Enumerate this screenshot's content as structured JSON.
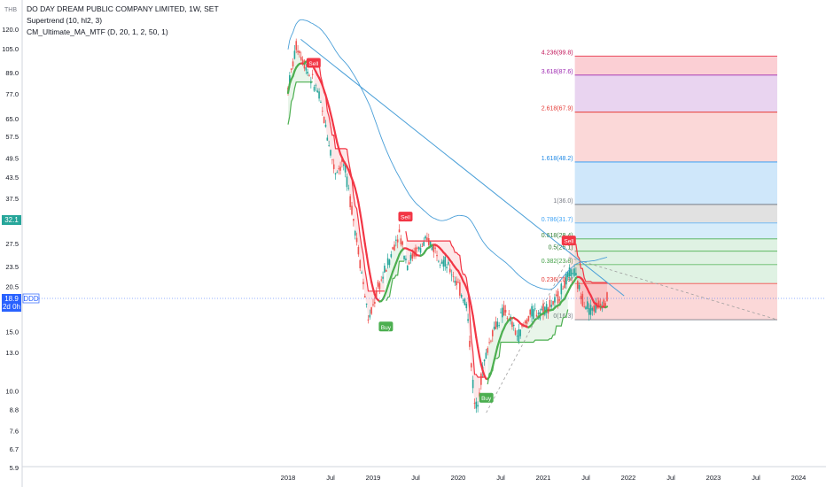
{
  "legend": {
    "title": "DO DAY DREAM PUBLIC COMPANY LIMITED, 1W, SET",
    "indicator1": "Supertrend (10, hl2, 3)",
    "indicator2": "CM_Ultimate_MA_MTF (D, 20, 1, 2, 50, 1)"
  },
  "currency": "THB",
  "current_price": {
    "value": "18.9",
    "timer": "2d 0h",
    "symbol": "DDD"
  },
  "level_marker": {
    "value": "32.1"
  },
  "colors": {
    "up": "#26a69a",
    "down": "#ef5350",
    "trend_line": "#4a9fd8",
    "supertrend_up": "#4caf50",
    "supertrend_down": "#f23645",
    "ma_line": "#4a9fd8"
  },
  "chart_data": {
    "type": "candlestick",
    "title": "DO DAY DREAM PUBLIC COMPANY LIMITED, 1W, SET",
    "y_scale": "log",
    "ylim": [
      5.9,
      120.0
    ],
    "y_ticks": [
      "120.0",
      "105.0",
      "89.0",
      "77.0",
      "65.0",
      "57.5",
      "49.5",
      "43.5",
      "37.5",
      "32.1",
      "27.5",
      "23.5",
      "20.5",
      "18.9",
      "15.0",
      "13.0",
      "10.0",
      "8.8",
      "7.6",
      "6.7",
      "5.9"
    ],
    "x_ticks": [
      "2018",
      "Jul",
      "2019",
      "Jul",
      "2020",
      "Jul",
      "2021",
      "Jul",
      "2022",
      "Jul",
      "2023",
      "Jul",
      "2024"
    ],
    "price_path": [
      {
        "t": 2018.0,
        "v": 80
      },
      {
        "t": 2018.1,
        "v": 108
      },
      {
        "t": 2018.25,
        "v": 88
      },
      {
        "t": 2018.35,
        "v": 78
      },
      {
        "t": 2018.45,
        "v": 60
      },
      {
        "t": 2018.55,
        "v": 45
      },
      {
        "t": 2018.65,
        "v": 48
      },
      {
        "t": 2018.75,
        "v": 35
      },
      {
        "t": 2018.85,
        "v": 24
      },
      {
        "t": 2018.95,
        "v": 16
      },
      {
        "t": 2019.05,
        "v": 20
      },
      {
        "t": 2019.2,
        "v": 25
      },
      {
        "t": 2019.3,
        "v": 30
      },
      {
        "t": 2019.4,
        "v": 24
      },
      {
        "t": 2019.5,
        "v": 26
      },
      {
        "t": 2019.65,
        "v": 28
      },
      {
        "t": 2019.8,
        "v": 25
      },
      {
        "t": 2019.95,
        "v": 22
      },
      {
        "t": 2020.1,
        "v": 18
      },
      {
        "t": 2020.2,
        "v": 8.6
      },
      {
        "t": 2020.3,
        "v": 12
      },
      {
        "t": 2020.4,
        "v": 15
      },
      {
        "t": 2020.55,
        "v": 17.5
      },
      {
        "t": 2020.7,
        "v": 14.5
      },
      {
        "t": 2020.85,
        "v": 17
      },
      {
        "t": 2021.0,
        "v": 17.5
      },
      {
        "t": 2021.15,
        "v": 18.5
      },
      {
        "t": 2021.25,
        "v": 21
      },
      {
        "t": 2021.35,
        "v": 23
      },
      {
        "t": 2021.45,
        "v": 19
      },
      {
        "t": 2021.55,
        "v": 17.5
      },
      {
        "t": 2021.65,
        "v": 18
      },
      {
        "t": 2021.75,
        "v": 18.9
      }
    ],
    "signals": [
      {
        "label": "Sell",
        "t": 2018.3,
        "v": 95
      },
      {
        "label": "Buy",
        "t": 2019.15,
        "v": 15.5
      },
      {
        "label": "Sell",
        "t": 2019.38,
        "v": 33
      },
      {
        "label": "Buy",
        "t": 2020.33,
        "v": 9.5
      },
      {
        "label": "Sell",
        "t": 2021.3,
        "v": 28
      }
    ],
    "trend_line": {
      "from": {
        "t": 2018.15,
        "v": 112
      },
      "to": {
        "t": 2021.95,
        "v": 19.2
      }
    },
    "fib_levels": [
      {
        "ratio": "4.236",
        "price": "99.8",
        "label": "4.236(99.8)"
      },
      {
        "ratio": "3.618",
        "price": "87.6",
        "label": "3.618(87.6)"
      },
      {
        "ratio": "2.618",
        "price": "67.9",
        "label": "2.618(67.9)"
      },
      {
        "ratio": "1.618",
        "price": "48.2",
        "label": "1.618(48.2)"
      },
      {
        "ratio": "1",
        "price": "36.0",
        "label": "1(36.0)"
      },
      {
        "ratio": "0.786",
        "price": "31.7",
        "label": "0.786(31.7)"
      },
      {
        "ratio": "0.618",
        "price": "28.4",
        "label": "0.618(28.4)"
      },
      {
        "ratio": "0.5",
        "price": "26.1",
        "label": "0.5(26.1)"
      },
      {
        "ratio": "0.382",
        "price": "23.8",
        "label": "0.382(23.8)"
      },
      {
        "ratio": "0.236",
        "price": "20.9",
        "label": "0.236(20.9)"
      },
      {
        "ratio": "0",
        "price": "16.3",
        "label": "0(16.3)"
      }
    ],
    "fib_range_t": [
      2021.35,
      2023.75
    ]
  }
}
